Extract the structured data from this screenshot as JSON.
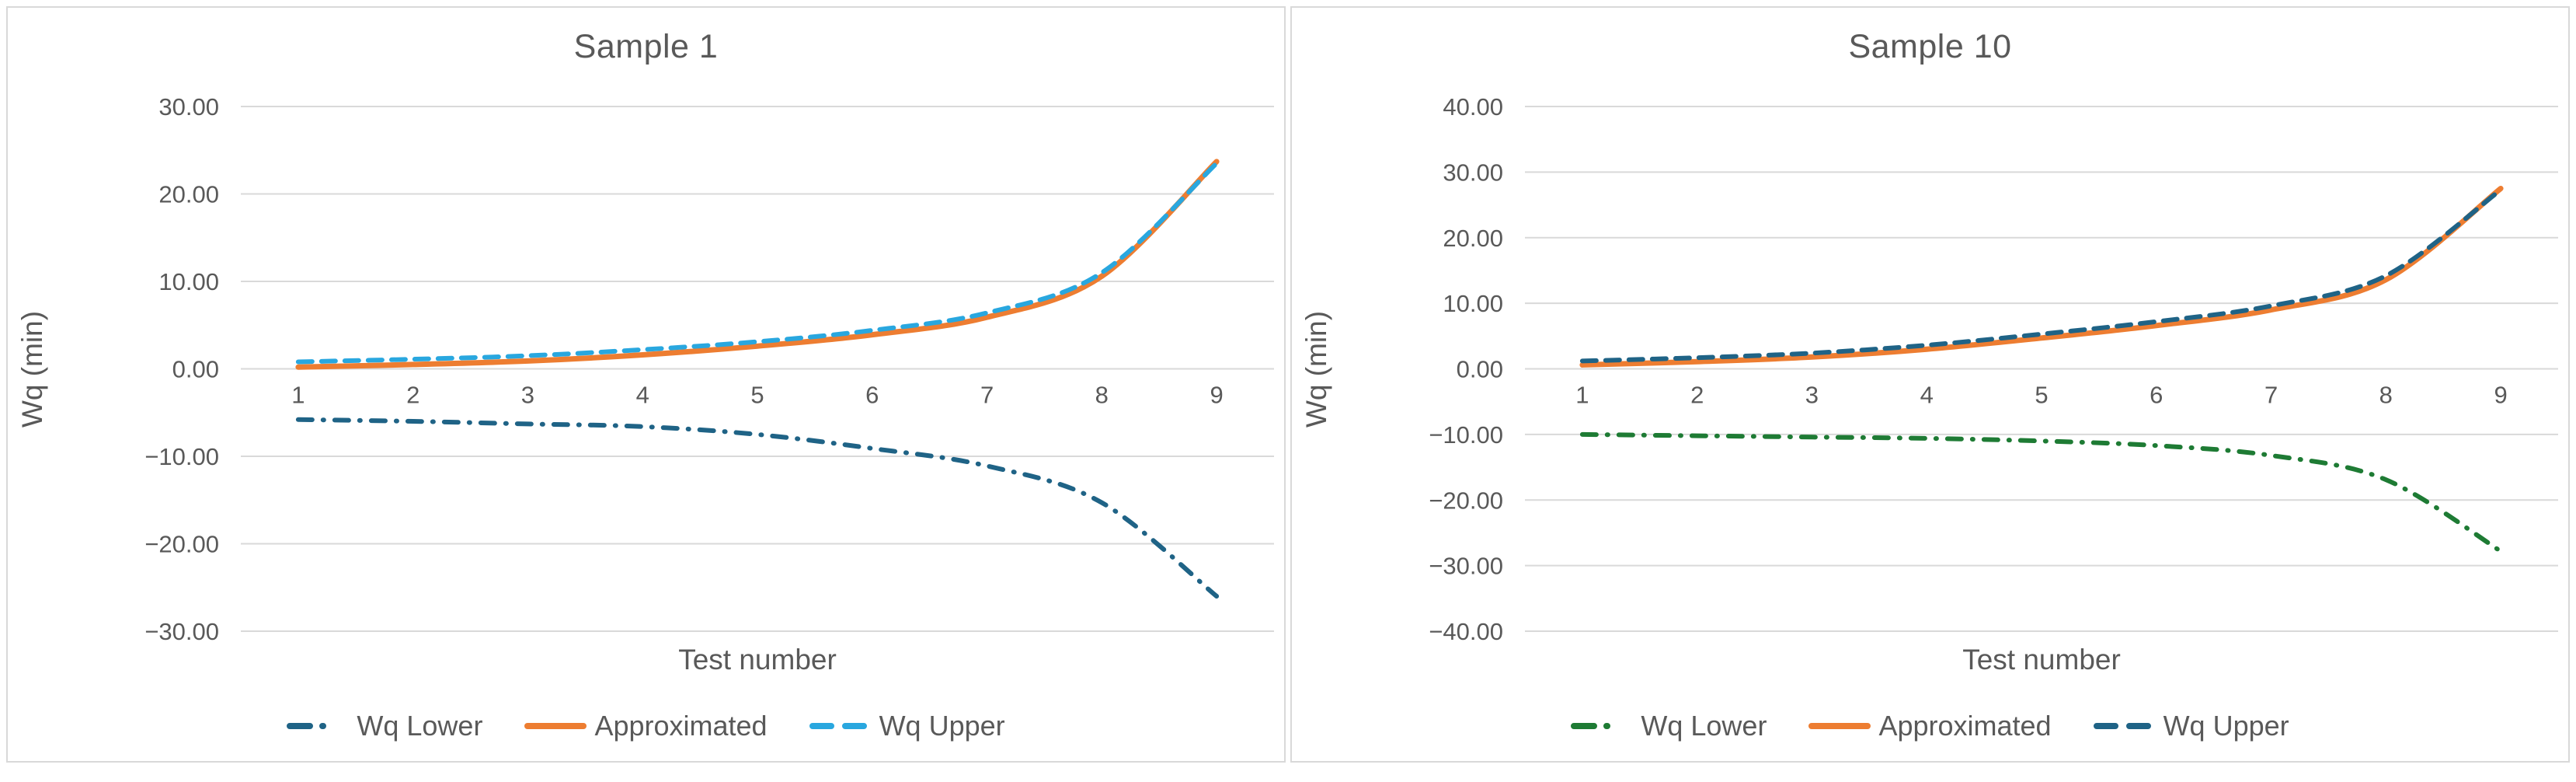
{
  "colors": {
    "text": "#595959",
    "grid": "#D9D9D9",
    "panel_border": "#D9D9D9",
    "orange": "#ED7D31",
    "steel_blue": "#1F6386",
    "light_blue": "#29A7DF",
    "green": "#1E7B34"
  },
  "chart_data": [
    {
      "type": "line",
      "title": "Sample 1",
      "xlabel": "Test number",
      "ylabel": "Wq (min)",
      "x": [
        1,
        2,
        3,
        4,
        5,
        6,
        7,
        8,
        9
      ],
      "xtick_labels": [
        "1",
        "2",
        "3",
        "4",
        "5",
        "6",
        "7",
        "8",
        "9"
      ],
      "ylim": [
        -30,
        30
      ],
      "ytick_values": [
        30,
        20,
        10,
        0,
        -10,
        -20,
        -30
      ],
      "ytick_labels": [
        "30.00",
        "20.00",
        "10.00",
        "0.00",
        "−10.00",
        "−20.00",
        "−30.00"
      ],
      "grid": true,
      "legend_position": "bottom",
      "series": [
        {
          "name": "Wq Lower",
          "style": "dashdot",
          "color": "#1F6386",
          "values": [
            -5.8,
            -6.0,
            -6.3,
            -6.6,
            -7.5,
            -9.1,
            -11.1,
            -15.3,
            -26.0
          ]
        },
        {
          "name": "Approximated",
          "style": "solid",
          "color": "#ED7D31",
          "values": [
            0.2,
            0.5,
            0.9,
            1.6,
            2.6,
            3.9,
            5.9,
            10.6,
            23.7
          ]
        },
        {
          "name": "Wq Upper",
          "style": "dash",
          "color": "#29A7DF",
          "values": [
            0.8,
            1.1,
            1.5,
            2.2,
            3.1,
            4.4,
            6.4,
            11.0,
            23.5
          ]
        }
      ]
    },
    {
      "type": "line",
      "title": "Sample 10",
      "xlabel": "Test number",
      "ylabel": "Wq (min)",
      "x": [
        1,
        2,
        3,
        4,
        5,
        6,
        7,
        8,
        9
      ],
      "xtick_labels": [
        "1",
        "2",
        "3",
        "4",
        "5",
        "6",
        "7",
        "8",
        "9"
      ],
      "ylim": [
        -40,
        40
      ],
      "ytick_values": [
        40,
        30,
        20,
        10,
        0,
        -10,
        -20,
        -30,
        -40
      ],
      "ytick_labels": [
        "40.00",
        "30.00",
        "20.00",
        "10.00",
        "0.00",
        "−10.00",
        "−20.00",
        "−30.00",
        "−40.00"
      ],
      "grid": true,
      "legend_position": "bottom",
      "series": [
        {
          "name": "Wq Lower",
          "style": "dashdot",
          "color": "#1E7B34",
          "values": [
            -10.0,
            -10.2,
            -10.4,
            -10.6,
            -11.0,
            -11.7,
            -13.2,
            -16.9,
            -27.8
          ]
        },
        {
          "name": "Approximated",
          "style": "solid",
          "color": "#ED7D31",
          "values": [
            0.6,
            1.1,
            1.8,
            3.0,
            4.7,
            6.6,
            9.0,
            13.6,
            27.5
          ]
        },
        {
          "name": "Wq Upper",
          "style": "dash",
          "color": "#1F6386",
          "values": [
            1.2,
            1.7,
            2.4,
            3.6,
            5.3,
            7.2,
            9.6,
            14.2,
            27.3
          ]
        }
      ]
    }
  ]
}
